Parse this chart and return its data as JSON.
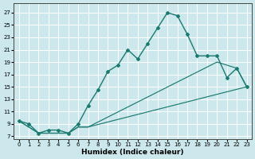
{
  "bg_color": "#cce8ec",
  "grid_color": "#ffffff",
  "line_color": "#1a7a70",
  "xlabel": "Humidex (Indice chaleur)",
  "xlim": [
    -0.5,
    23.5
  ],
  "ylim": [
    6.5,
    28.5
  ],
  "xticks": [
    0,
    1,
    2,
    3,
    4,
    5,
    6,
    7,
    8,
    9,
    10,
    11,
    12,
    13,
    14,
    15,
    16,
    17,
    18,
    19,
    20,
    21,
    22,
    23
  ],
  "yticks": [
    7,
    9,
    11,
    13,
    15,
    17,
    19,
    21,
    23,
    25,
    27
  ],
  "curve1_x": [
    0,
    1,
    2,
    3,
    4,
    5,
    6,
    7,
    8,
    9,
    10,
    11,
    12,
    13,
    14,
    15,
    16,
    17,
    18,
    19,
    20,
    21,
    22,
    23
  ],
  "curve1_y": [
    9.5,
    9.0,
    7.5,
    8.0,
    8.0,
    7.5,
    9.0,
    12.0,
    14.5,
    17.5,
    18.5,
    21.0,
    19.5,
    22.0,
    24.5,
    27.0,
    26.5,
    23.5,
    20.0,
    20.0,
    20.0,
    16.5,
    18.0,
    15.0
  ],
  "curve2_x": [
    0,
    2,
    5,
    6,
    7,
    20,
    22,
    23
  ],
  "curve2_y": [
    9.5,
    7.5,
    7.5,
    8.5,
    8.5,
    19.0,
    18.0,
    15.0
  ],
  "curve3_x": [
    0,
    2,
    5,
    6,
    7,
    23
  ],
  "curve3_y": [
    9.5,
    7.5,
    7.5,
    8.5,
    8.5,
    15.0
  ]
}
